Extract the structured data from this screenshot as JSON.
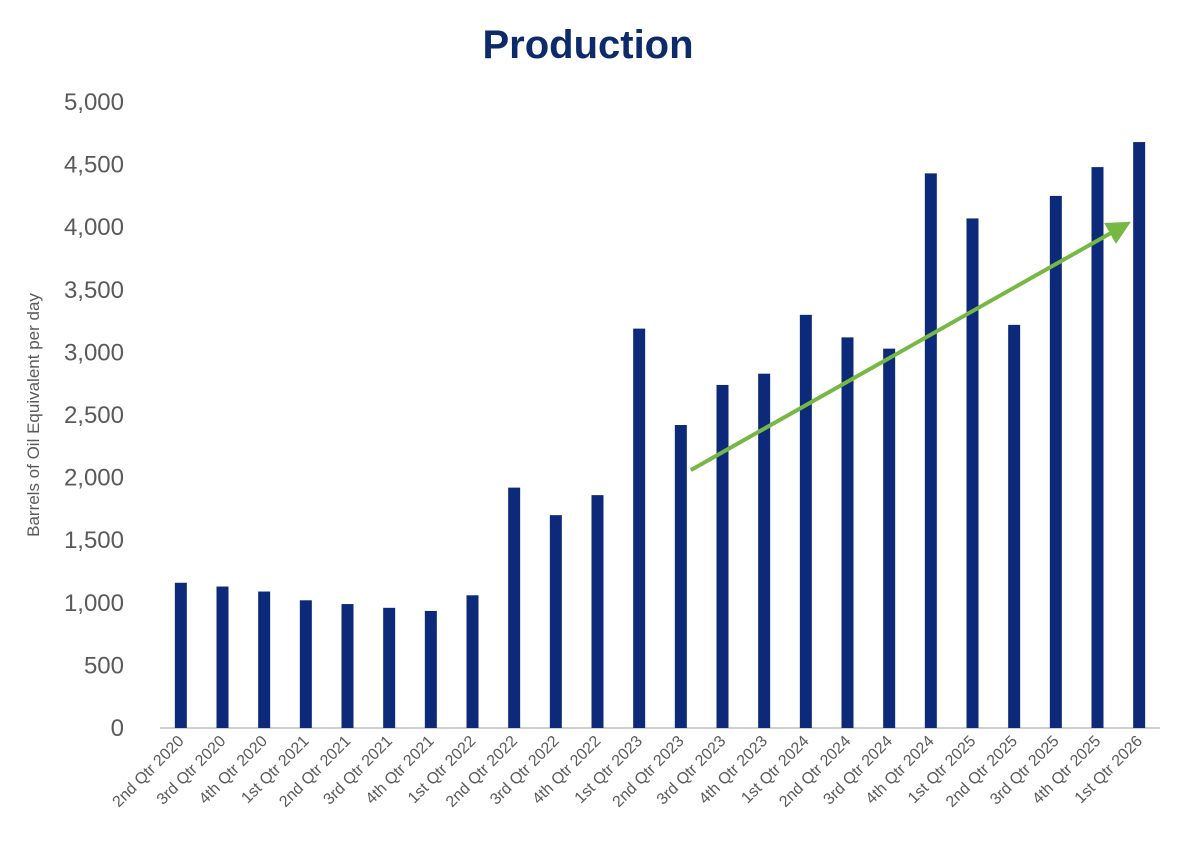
{
  "chart_data": {
    "type": "bar",
    "title": "Production",
    "xlabel": "",
    "ylabel": "Barrels of Oil Equivalent per day",
    "ylim": [
      0,
      5000
    ],
    "yticks": [
      0,
      500,
      1000,
      1500,
      2000,
      2500,
      3000,
      3500,
      4000,
      4500,
      5000
    ],
    "ytick_labels": [
      "0",
      "500",
      "1,000",
      "1,500",
      "2,000",
      "2,500",
      "3,000",
      "3,500",
      "4,000",
      "4,500",
      "5,000"
    ],
    "grid": false,
    "legend": "none",
    "categories": [
      "2nd Qtr 2020",
      "3rd Qtr 2020",
      "4th Qtr 2020",
      "1st Qtr 2021",
      "2nd Qtr 2021",
      "3rd Qtr 2021",
      "4th Qtr 2021",
      "1st Qtr 2022",
      "2nd Qtr 2022",
      "3rd Qtr 2022",
      "4th Qtr 2022",
      "1st Qtr 2023",
      "2nd Qtr 2023",
      "3rd Qtr 2023",
      "4th Qtr 2023",
      "1st Qtr 2024",
      "2nd Qtr 2024",
      "3rd Qtr 2024",
      "4th Qtr 2024",
      "1st Qtr 2025",
      "2nd Qtr 2025",
      "3rd Qtr 2025",
      "4th Qtr 2025",
      "1st Qtr 2026"
    ],
    "values": [
      1160,
      1130,
      1090,
      1020,
      990,
      960,
      935,
      1060,
      1920,
      1700,
      1860,
      3190,
      2420,
      2740,
      2830,
      3300,
      3120,
      3030,
      4430,
      4070,
      3220,
      4250,
      4480,
      4680
    ],
    "bar_color": "#0d2a7a",
    "axis_color": "#bfbfbf",
    "title_color": "#0d2a6b",
    "annotations": [
      {
        "type": "trend-arrow",
        "color": "#76b843",
        "from": {
          "x": "2nd Qtr 2023",
          "y": 2060
        },
        "to": {
          "x": "1st Qtr 2026",
          "y": 4000
        }
      }
    ]
  }
}
